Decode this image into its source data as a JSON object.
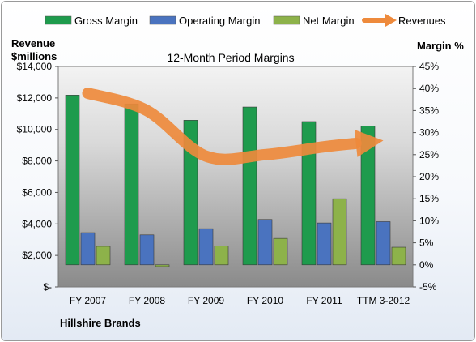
{
  "colors": {
    "gross": "#1e9b4d",
    "operating": "#4a73bf",
    "net": "#8db24a",
    "revenues": "#ee8a3c"
  },
  "chart_data": {
    "type": "bar",
    "title": "12-Month Period Margins",
    "company": "Hillshire Brands",
    "left_axis": {
      "label_line1": "Revenue",
      "label_line2": "$millions",
      "min": 0,
      "max": 14000,
      "ticks": [
        0,
        2000,
        4000,
        6000,
        8000,
        10000,
        12000,
        14000
      ],
      "tick_labels": [
        "$-",
        "$2,000",
        "$4,000",
        "$6,000",
        "$8,000",
        "$10,000",
        "$12,000",
        "$14,000"
      ]
    },
    "right_axis": {
      "label": "Margin %",
      "min": -5,
      "max": 45,
      "ticks": [
        -5,
        0,
        5,
        10,
        15,
        20,
        25,
        30,
        35,
        40,
        45
      ],
      "tick_labels": [
        "-5%",
        "0%",
        "5%",
        "10%",
        "15%",
        "20%",
        "25%",
        "30%",
        "35%",
        "40%",
        "45%"
      ]
    },
    "categories": [
      "FY 2007",
      "FY 2008",
      "FY 2009",
      "FY 2010",
      "FY 2011",
      "TTM 3-2012"
    ],
    "series": [
      {
        "name": "Gross Margin",
        "kind": "bar",
        "axis": "right",
        "color_key": "gross",
        "values": [
          38.5,
          36.5,
          32.8,
          35.8,
          32.5,
          31.5
        ]
      },
      {
        "name": "Operating Margin",
        "kind": "bar",
        "axis": "right",
        "color_key": "operating",
        "values": [
          7.3,
          6.8,
          8.2,
          10.3,
          9.5,
          9.8
        ]
      },
      {
        "name": "Net Margin",
        "kind": "bar",
        "axis": "right",
        "color_key": "net",
        "values": [
          4.2,
          -0.4,
          4.3,
          6.0,
          15.0,
          4.0
        ]
      },
      {
        "name": "Revenues",
        "kind": "arrow-line",
        "axis": "left",
        "color_key": "revenues",
        "values": [
          12300,
          11200,
          8300,
          8400,
          8900,
          9300
        ]
      }
    ],
    "legend_position": "top"
  }
}
